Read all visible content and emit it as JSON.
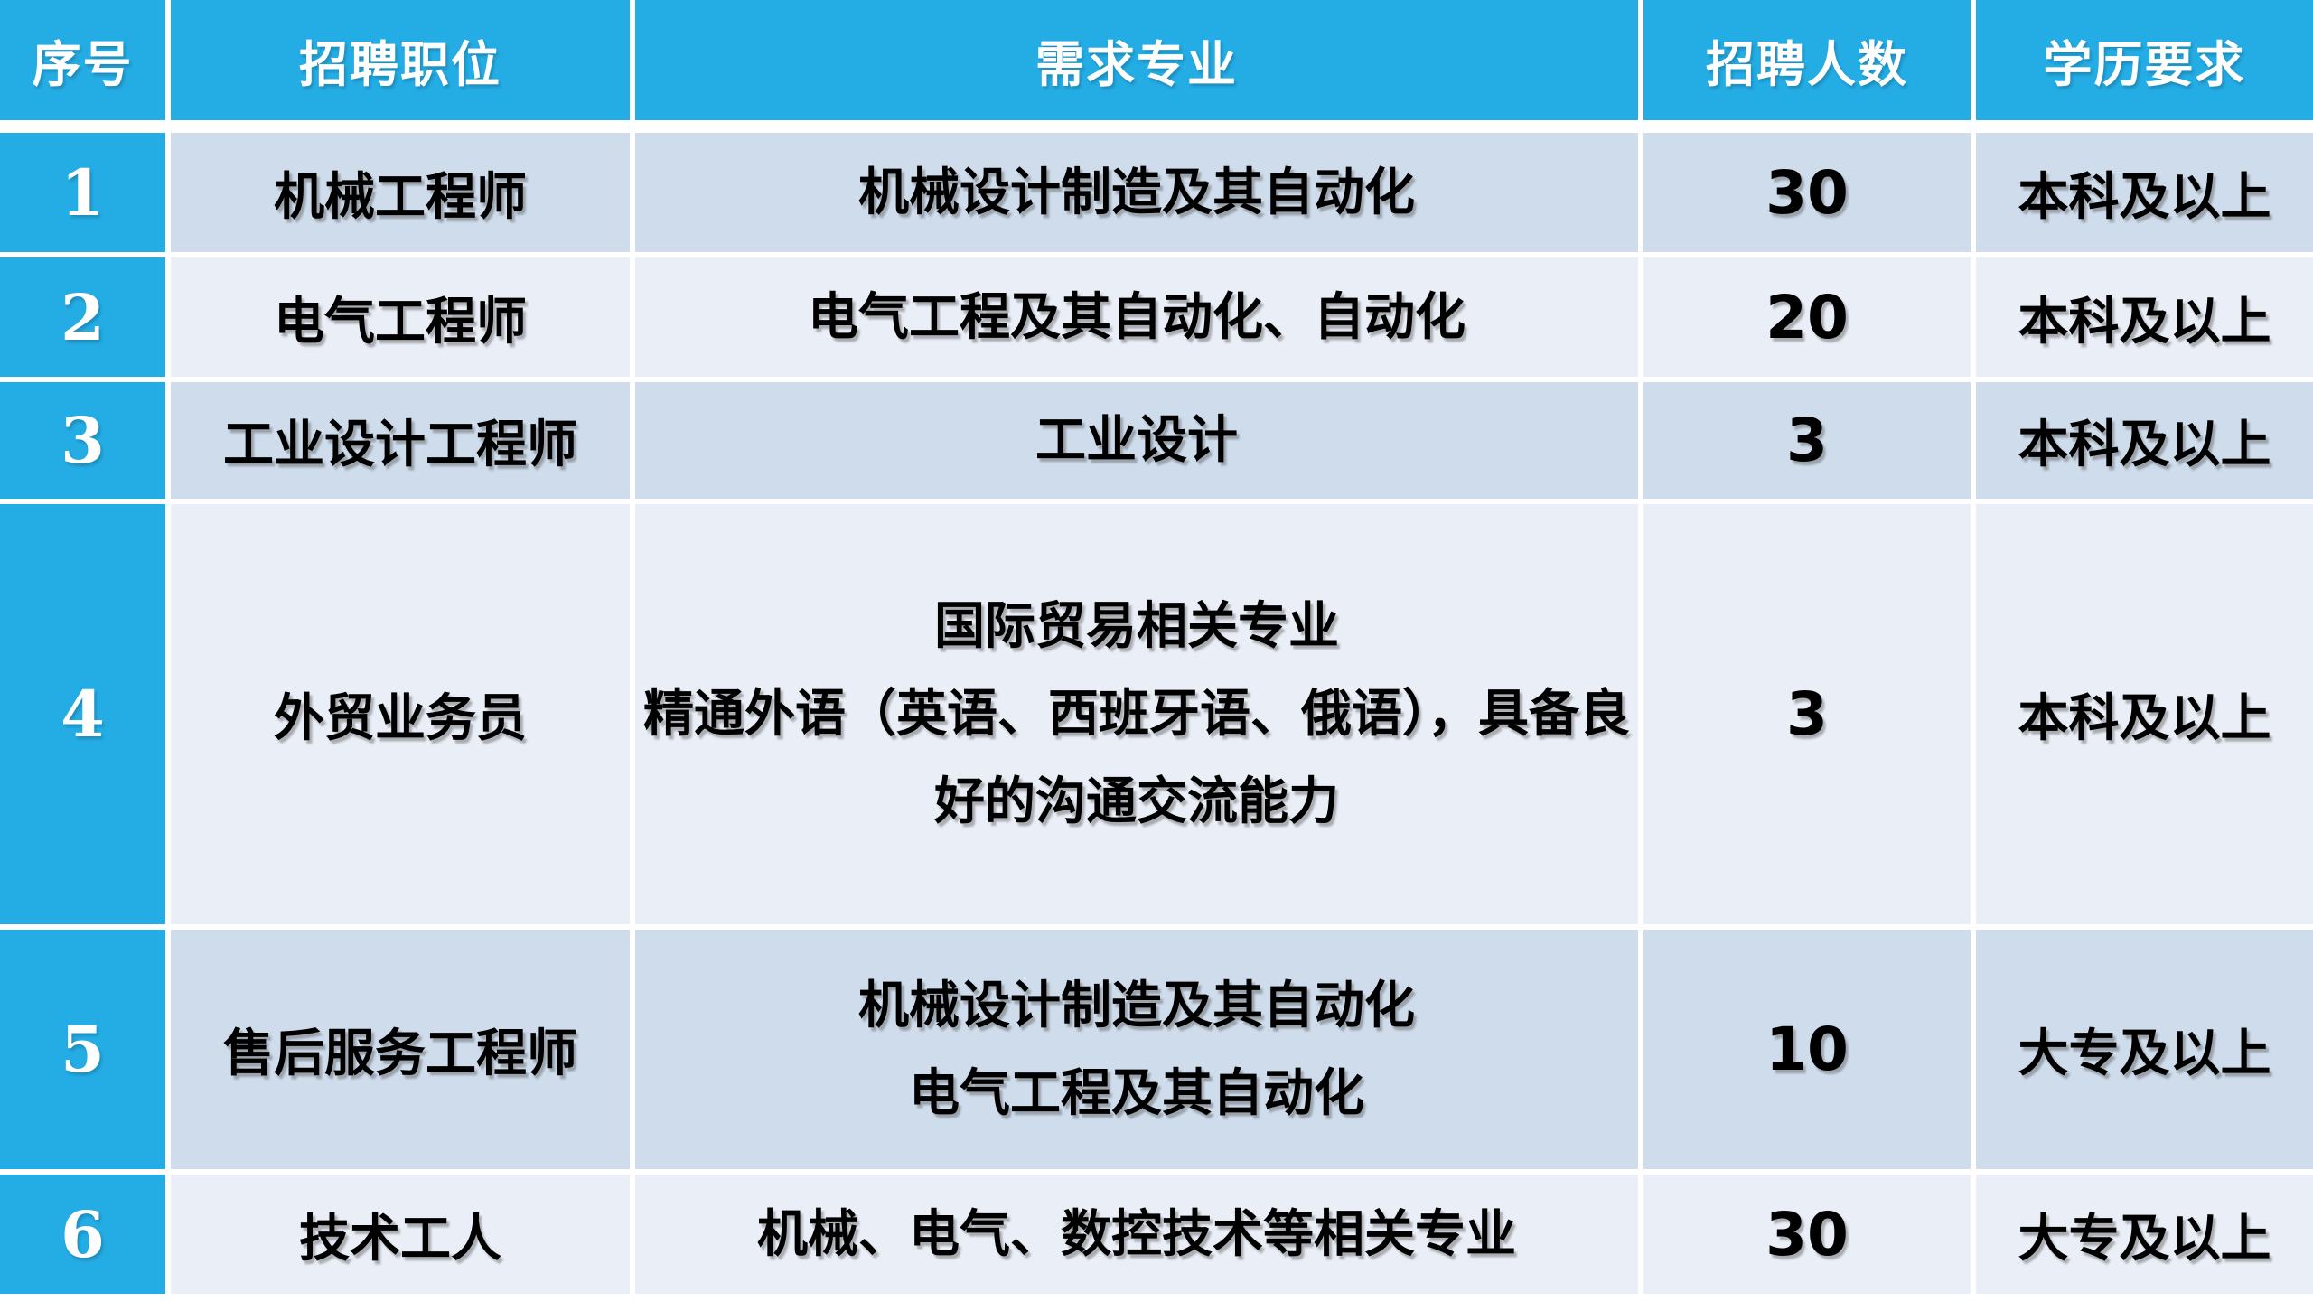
{
  "table": {
    "accent_color": "#24ACE4",
    "row_dark_color": "#CEDCEC",
    "row_light_color": "#E9EEF7",
    "grid_color": "#FFFFFF",
    "header_text_color": "#FFFFFF",
    "body_text_color": "#000000",
    "headers": {
      "no": "序号",
      "position": "招聘职位",
      "major": "需求专业",
      "headcount": "招聘人数",
      "education": "学历要求"
    },
    "rows": [
      {
        "no": "1",
        "position": "机械工程师",
        "major_lines": [
          "机械设计制造及其自动化"
        ],
        "headcount": "30",
        "education": "本科及以上"
      },
      {
        "no": "2",
        "position": "电气工程师",
        "major_lines": [
          "电气工程及其自动化、自动化"
        ],
        "headcount": "20",
        "education": "本科及以上"
      },
      {
        "no": "3",
        "position": "工业设计工程师",
        "major_lines": [
          "工业设计"
        ],
        "headcount": "3",
        "education": "本科及以上"
      },
      {
        "no": "4",
        "position": "外贸业务员",
        "major_lines": [
          "国际贸易相关专业",
          "精通外语（英语、西班牙语、俄语），具备良",
          "好的沟通交流能力"
        ],
        "headcount": "3",
        "education": "本科及以上"
      },
      {
        "no": "5",
        "position": "售后服务工程师",
        "major_lines": [
          "机械设计制造及其自动化",
          "电气工程及其自动化"
        ],
        "headcount": "10",
        "education": "大专及以上"
      },
      {
        "no": "6",
        "position": "技术工人",
        "major_lines": [
          "机械、电气、数控技术等相关专业"
        ],
        "headcount": "30",
        "education": "大专及以上"
      }
    ]
  }
}
